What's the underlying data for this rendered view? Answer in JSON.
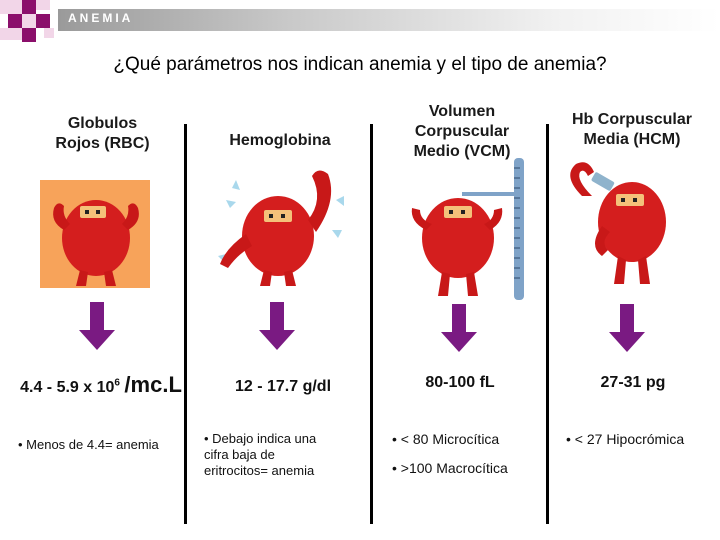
{
  "header": {
    "label": "ANEMIA"
  },
  "title": "¿Qué parámetros nos indican anemia y el tipo de anemia?",
  "columns": [
    {
      "title_lines": [
        "Globulos",
        "Rojos (RBC)"
      ],
      "value_prefix": "4.4 - 5.9 x 10",
      "value_sup": "6",
      "value_suffix": "/mc.L",
      "notes": [
        "• Menos de 4.4= anemia"
      ]
    },
    {
      "title_lines": [
        "Hemoglobina"
      ],
      "value": "12 - 17.7 g/dl",
      "notes": [
        "• Debajo indica una",
        "cifra baja de",
        "eritrocitos= anemia"
      ]
    },
    {
      "title_lines": [
        "Volumen",
        "Corpuscular",
        "Medio (VCM)"
      ],
      "value": "80-100 fL",
      "notes": [
        "• < 80 Microcítica",
        "• >100 Macrocítica"
      ]
    },
    {
      "title_lines": [
        "Hb Corpuscular",
        "Media (HCM)"
      ],
      "value": "27-31 pg",
      "notes": [
        "• < 27 Hipocrómica"
      ]
    }
  ],
  "colors": {
    "accent": "#8b0f6b",
    "cell_red": "#d41e1e",
    "arrow_purple": "#7a1a82",
    "box_orange": "#f7a35a"
  }
}
